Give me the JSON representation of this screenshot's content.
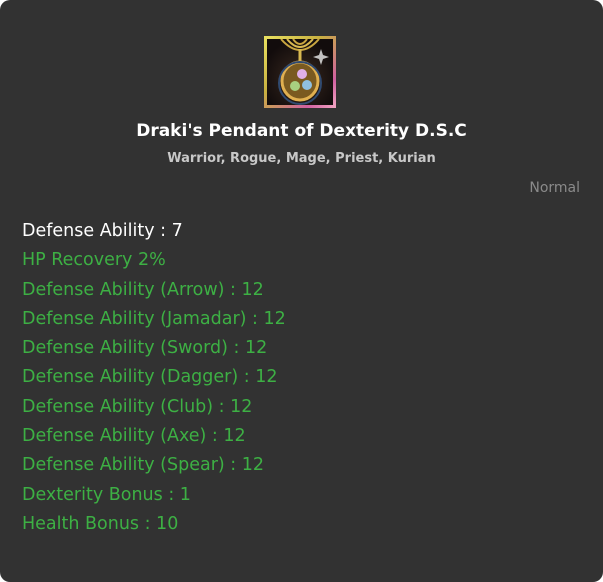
{
  "item": {
    "icon": "pendant-icon",
    "name": "Draki's Pendant of Dexterity D.S.C",
    "classes": "Warrior, Rogue, Mage, Priest, Kurian",
    "grade": "Normal"
  },
  "stats": [
    {
      "text": "Defense Ability : 7",
      "type": "base"
    },
    {
      "text": "HP Recovery 2%",
      "type": "bonus"
    },
    {
      "text": "Defense Ability (Arrow) : 12",
      "type": "bonus"
    },
    {
      "text": "Defense Ability (Jamadar) : 12",
      "type": "bonus"
    },
    {
      "text": "Defense Ability (Sword) : 12",
      "type": "bonus"
    },
    {
      "text": "Defense Ability (Dagger) : 12",
      "type": "bonus"
    },
    {
      "text": "Defense Ability (Club) : 12",
      "type": "bonus"
    },
    {
      "text": "Defense Ability (Axe) : 12",
      "type": "bonus"
    },
    {
      "text": "Defense Ability (Spear) : 12",
      "type": "bonus"
    },
    {
      "text": "Dexterity Bonus : 1",
      "type": "bonus"
    },
    {
      "text": "Health Bonus : 10",
      "type": "bonus"
    }
  ],
  "colors": {
    "background": "#323232",
    "base": "#ffffff",
    "bonus": "#3db044",
    "grade": "#8a8a8a"
  }
}
